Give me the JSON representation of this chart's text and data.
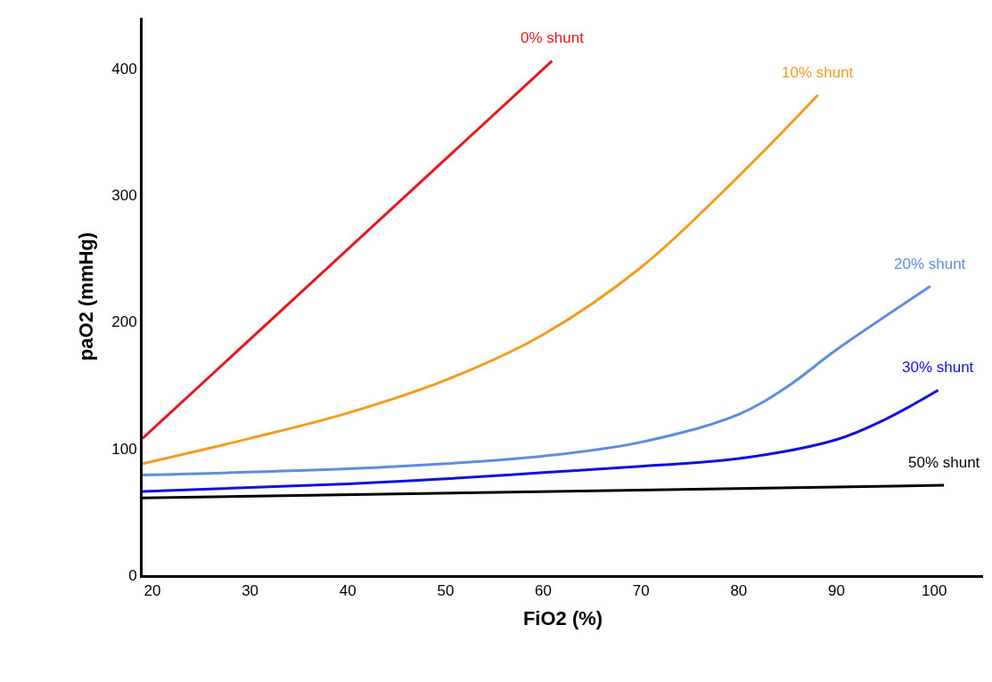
{
  "chart_data": {
    "type": "line",
    "xlabel": "FiO2 (%)",
    "ylabel": "paO2 (mmHg)",
    "xlim": [
      19,
      105
    ],
    "ylim": [
      0,
      440
    ],
    "xticks": [
      20,
      30,
      40,
      50,
      60,
      70,
      80,
      90,
      100
    ],
    "yticks": [
      0,
      100,
      200,
      300,
      400
    ],
    "legend": false,
    "marker": "none",
    "line_style": "solid",
    "series": [
      {
        "name": "0% shunt",
        "color": "#e8191c",
        "x": [
          19,
          60.9
        ],
        "values": [
          108,
          406
        ]
      },
      {
        "name": "10% shunt",
        "color": "#f39c1f",
        "x": [
          19,
          30,
          40,
          50,
          60,
          70,
          80,
          88.1
        ],
        "values": [
          88,
          108,
          128,
          154,
          190,
          243,
          315,
          379
        ]
      },
      {
        "name": "20% shunt",
        "color": "#5b8de0",
        "x": [
          19,
          40,
          50,
          60,
          70,
          80,
          85,
          90,
          99.6
        ],
        "values": [
          79,
          84,
          88,
          94,
          105,
          127,
          149,
          178,
          228
        ]
      },
      {
        "name": "30% shunt",
        "color": "#1010e0",
        "x": [
          19,
          40,
          50,
          60,
          70,
          80,
          90,
          95,
          100.4
        ],
        "values": [
          66,
          72,
          76,
          81,
          86,
          92,
          107,
          123,
          146
        ]
      },
      {
        "name": "50% shunt",
        "color": "#000000",
        "x": [
          19,
          101
        ],
        "values": [
          61,
          71
        ]
      }
    ]
  }
}
